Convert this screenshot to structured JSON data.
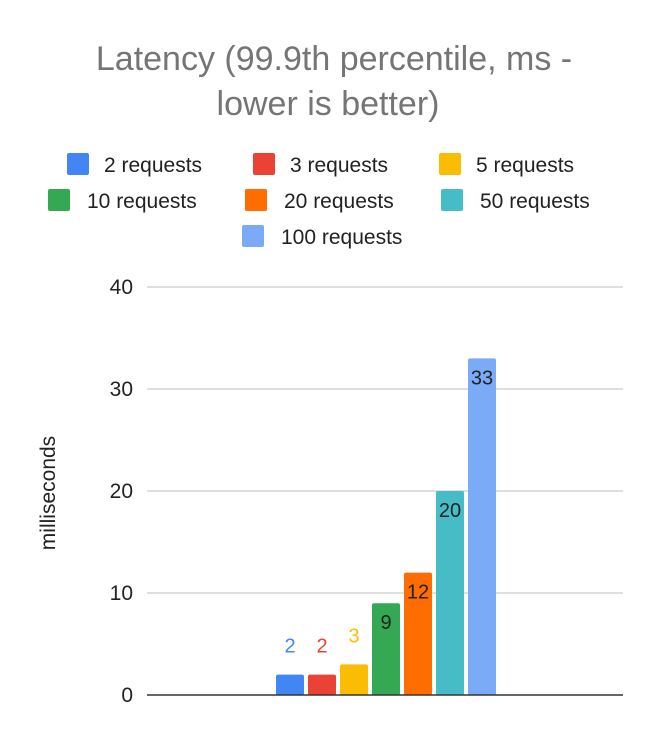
{
  "chart_data": {
    "type": "bar",
    "title_lines": [
      "Latency (99.9th percentile, ms -",
      "lower is better)"
    ],
    "xlabel": "",
    "ylabel": "milliseconds",
    "ylim": [
      0,
      40
    ],
    "yticks": [
      0,
      10,
      20,
      30,
      40
    ],
    "grid": true,
    "legend_position": "top",
    "series": [
      {
        "name": "2 requests",
        "value": 2,
        "label": "2",
        "color": "#4285f4"
      },
      {
        "name": "3 requests",
        "value": 2,
        "label": "2",
        "color": "#ea4335"
      },
      {
        "name": "5 requests",
        "value": 3,
        "label": "3",
        "color": "#fbbc04"
      },
      {
        "name": "10 requests",
        "value": 9,
        "label": "9",
        "color": "#34a853"
      },
      {
        "name": "20 requests",
        "value": 12,
        "label": "12",
        "color": "#ff6d01"
      },
      {
        "name": "50 requests",
        "value": 20,
        "label": "20",
        "color": "#46bdc6"
      },
      {
        "name": "100 requests",
        "value": 33,
        "label": "33",
        "color": "#7baaf7"
      }
    ]
  }
}
